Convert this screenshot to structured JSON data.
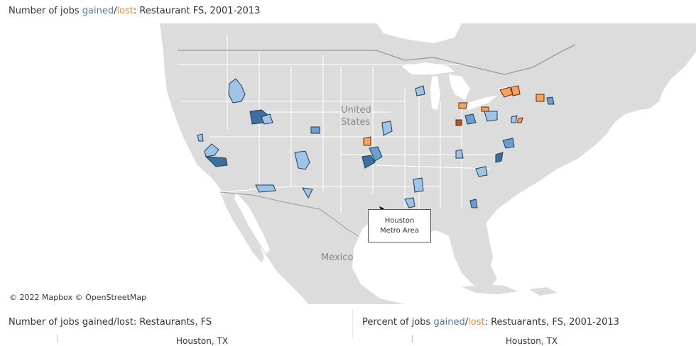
{
  "header": {
    "prefix": "Number of jobs ",
    "gained": "gained",
    "slash": "/",
    "lost": "lost",
    "suffix": ": Restaurant FS, 2001-2013"
  },
  "map": {
    "labels": {
      "us_line1": "United",
      "us_line2": "States",
      "mexico": "Mexico"
    },
    "attribution": "© 2022 Mapbox © OpenStreetMap",
    "callout": {
      "line1": "Houston",
      "line2": "Metro Area"
    },
    "colors": {
      "gain_light": "#a0c4e6",
      "gain_mid": "#6b9fd0",
      "gain_dark": "#3d6f9f",
      "lost_light": "#f5a25e",
      "lost_dark": "#b55b2a",
      "land": "#dcdcdc",
      "water": "#ffffff"
    }
  },
  "bottom_left": {
    "title": "Number of jobs gained/lost: Restaurants, FS",
    "cut_label": "Houston, TX"
  },
  "bottom_right": {
    "prefix": "Percent of jobs ",
    "gained": "gained",
    "slash": "/",
    "lost": "lost",
    "suffix": ": Restuarants, FS, 2001-2013",
    "cut_label": "Houston, TX"
  }
}
